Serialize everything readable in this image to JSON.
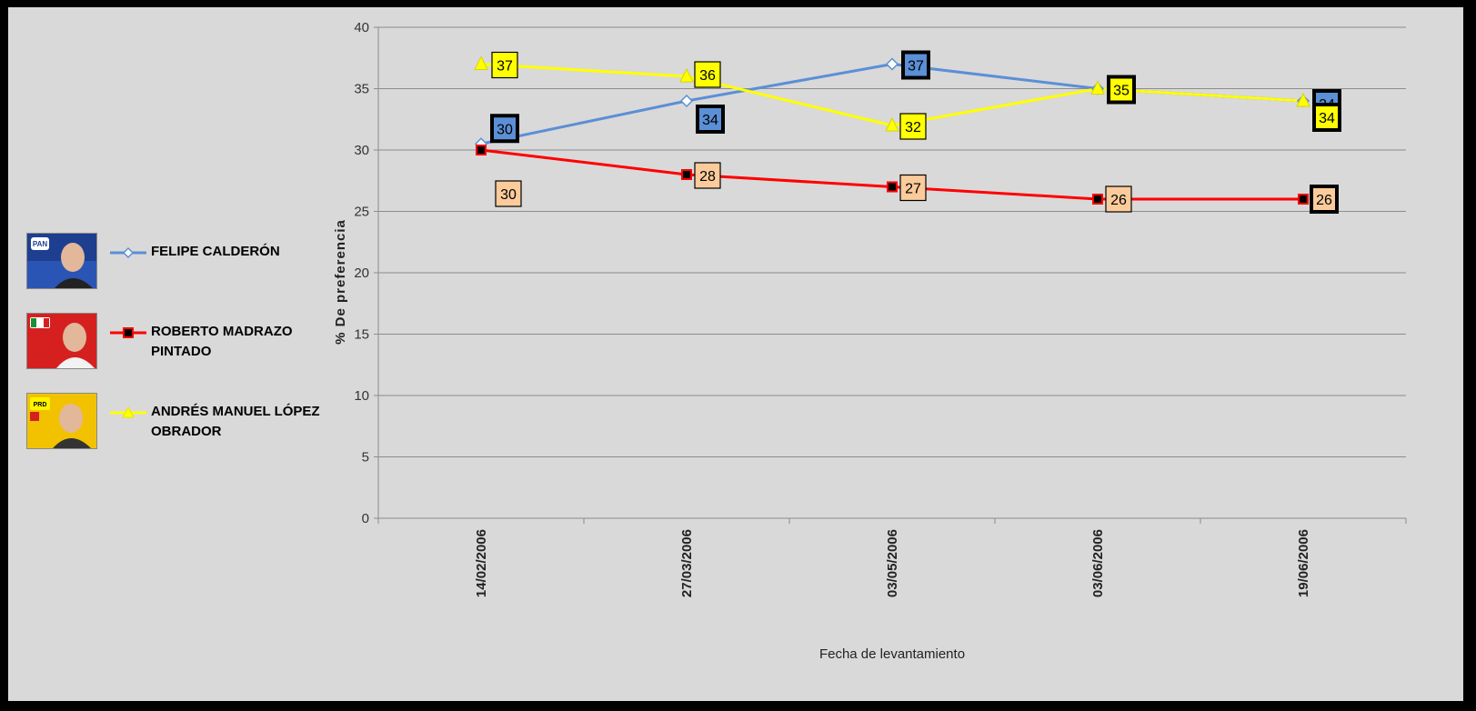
{
  "chart_data": {
    "type": "line",
    "title": "",
    "xlabel": "Fecha de levantamiento",
    "ylabel": "% De preferencia",
    "ylim": [
      0,
      40
    ],
    "yticks": [
      0,
      5,
      10,
      15,
      20,
      25,
      30,
      35,
      40
    ],
    "grid": true,
    "legend_position": "left",
    "categories": [
      "14/02/2006",
      "27/03/2006",
      "03/05/2006",
      "03/06/2006",
      "19/06/2006"
    ],
    "series": [
      {
        "name": "FELIPE CALDERÓN",
        "color": "#5b8fd6",
        "marker": "diamond",
        "label_bg": "#5b8fd6",
        "values": [
          30.5,
          34,
          37,
          35,
          34
        ]
      },
      {
        "name": "ROBERTO MADRAZO PINTADO",
        "color": "#ff0000",
        "marker": "square",
        "label_bg": "#fbcb9b",
        "values": [
          30,
          28,
          27,
          26,
          26
        ]
      },
      {
        "name": "ANDRÉS MANUEL LÓPEZ OBRADOR",
        "color": "#ffff00",
        "marker": "triangle",
        "label_bg": "#ffff00",
        "values": [
          37,
          36,
          32,
          35,
          34
        ]
      }
    ],
    "data_labels": [
      {
        "series": 0,
        "point": 0,
        "text": "30",
        "bold_border": true
      },
      {
        "series": 0,
        "point": 1,
        "text": "34",
        "bold_border": true
      },
      {
        "series": 0,
        "point": 2,
        "text": "37",
        "bold_border": true
      },
      {
        "series": 0,
        "point": 4,
        "text": "34",
        "bold_border": true
      },
      {
        "series": 1,
        "point": 0,
        "text": "30",
        "bold_border": false
      },
      {
        "series": 1,
        "point": 1,
        "text": "28",
        "bold_border": false
      },
      {
        "series": 1,
        "point": 2,
        "text": "27",
        "bold_border": false
      },
      {
        "series": 1,
        "point": 3,
        "text": "26",
        "bold_border": false
      },
      {
        "series": 1,
        "point": 4,
        "text": "26",
        "bold_border": true
      },
      {
        "series": 2,
        "point": 0,
        "text": "37",
        "bold_border": false
      },
      {
        "series": 2,
        "point": 1,
        "text": "36",
        "bold_border": false
      },
      {
        "series": 2,
        "point": 2,
        "text": "32",
        "bold_border": false
      },
      {
        "series": 2,
        "point": 3,
        "text": "35",
        "bold_border": true
      },
      {
        "series": 2,
        "point": 4,
        "text": "34",
        "bold_border": true
      }
    ]
  },
  "legend": {
    "items": [
      {
        "label": "FELIPE CALDERÓN",
        "photo_icon": "candidate-photo-pan",
        "photo_color": "#1e3f8f",
        "badge_text": "PAN"
      },
      {
        "label": "ROBERTO MADRAZO\nPINTADO",
        "photo_icon": "candidate-photo-pri",
        "photo_color": "#d62020",
        "badge_text": ""
      },
      {
        "label": "ANDRÉS MANUEL LÓPEZ\nOBRADOR",
        "photo_icon": "candidate-photo-prd",
        "photo_color": "#f2c200",
        "badge_text": "PRD"
      }
    ]
  }
}
